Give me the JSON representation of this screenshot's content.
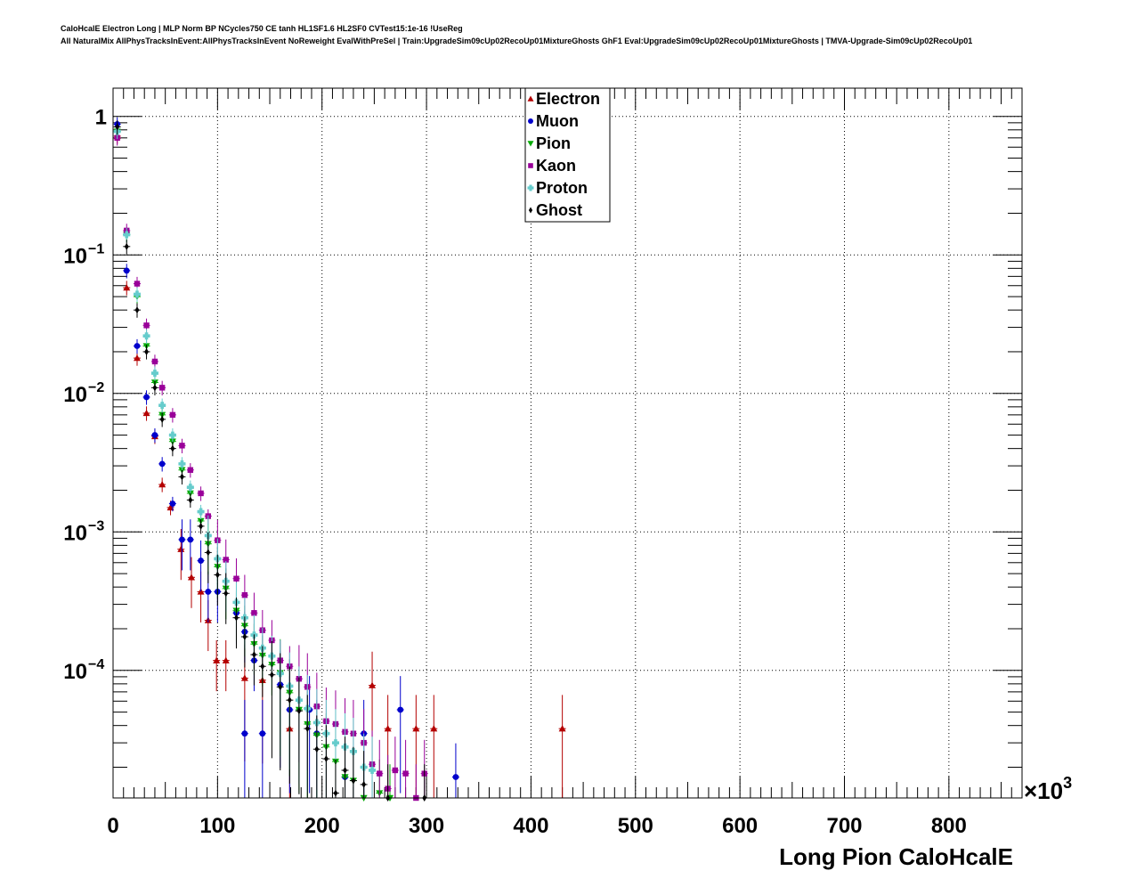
{
  "title": {
    "line1": "CaloHcalE Electron Long | MLP Norm BP NCycles750 CE tanh HL1SF1.6 HL2SF0 CVTest15:1e-16 !UseReg",
    "line2": "All NaturalMix AllPhysTracksInEvent:AllPhysTracksInEvent NoReweight EvalWithPreSel | Train:UpgradeSim09cUp02RecoUp01MixtureGhosts GhF1 Eval:UpgradeSim09cUp02RecoUp01MixtureGhosts | TMVA-Upgrade-Sim09cUp02RecoUp01"
  },
  "chart_data": {
    "type": "scatter",
    "xlabel": "Long Pion CaloHcalE",
    "x_multiplier_label": "×10",
    "x_multiplier_exponent": "3",
    "x_unit_note": "x values in units of 10^3",
    "xlim": [
      0,
      870
    ],
    "ylim": [
      1.2e-05,
      1.6
    ],
    "yscale": "log",
    "grid": true,
    "legend_position": "top-center",
    "x_ticks": [
      0,
      100,
      200,
      300,
      400,
      500,
      600,
      700,
      800
    ],
    "y_ticks": [
      {
        "value": 1,
        "mant": "1",
        "exp": ""
      },
      {
        "value": 0.1,
        "mant": "10",
        "exp": "−1"
      },
      {
        "value": 0.01,
        "mant": "10",
        "exp": "−2"
      },
      {
        "value": 0.001,
        "mant": "10",
        "exp": "−3"
      },
      {
        "value": 0.0001,
        "mant": "10",
        "exp": "−4"
      }
    ],
    "series": [
      {
        "name": "Electron",
        "color": "#b40000",
        "marker": "triangle-up",
        "points": [
          [
            4,
            0.72
          ],
          [
            13,
            0.058
          ],
          [
            23,
            0.018
          ],
          [
            32,
            0.0072
          ],
          [
            40,
            0.0049
          ],
          [
            47,
            0.0022
          ],
          [
            55,
            0.0015
          ],
          [
            65,
            0.00075
          ],
          [
            75,
            0.00047
          ],
          [
            84,
            0.00037
          ],
          [
            91,
            0.00023
          ],
          [
            99,
            0.000118
          ],
          [
            108,
            0.000118
          ],
          [
            126,
            8.8e-05
          ],
          [
            143,
            8.5e-05
          ],
          [
            169,
            3.8e-05
          ],
          [
            248,
            7.8e-05
          ],
          [
            263,
            3.8e-05
          ],
          [
            290,
            3.8e-05
          ],
          [
            307,
            3.8e-05
          ],
          [
            430,
            3.8e-05
          ]
        ]
      },
      {
        "name": "Muon",
        "color": "#0000cc",
        "marker": "circle",
        "points": [
          [
            4,
            0.88
          ],
          [
            13,
            0.077
          ],
          [
            23,
            0.022
          ],
          [
            32,
            0.0094
          ],
          [
            40,
            0.005
          ],
          [
            47,
            0.0031
          ],
          [
            57,
            0.0016
          ],
          [
            66,
            0.00088
          ],
          [
            74,
            0.00088
          ],
          [
            84,
            0.00062
          ],
          [
            91,
            0.00037
          ],
          [
            100,
            0.00037
          ],
          [
            118,
            0.00026
          ],
          [
            126,
            0.00019
          ],
          [
            126,
            3.5e-05
          ],
          [
            135,
            0.000118
          ],
          [
            143,
            3.5e-05
          ],
          [
            160,
            7.9e-05
          ],
          [
            169,
            5.2e-05
          ],
          [
            188,
            5.2e-05
          ],
          [
            195,
            3.5e-05
          ],
          [
            222,
            1.7e-05
          ],
          [
            240,
            3.5e-05
          ],
          [
            275,
            5.2e-05
          ],
          [
            328,
            1.7e-05
          ]
        ]
      },
      {
        "name": "Pion",
        "color": "#00aa00",
        "marker": "triangle-down",
        "points": [
          [
            4,
            0.78
          ],
          [
            13,
            0.14
          ],
          [
            23,
            0.05
          ],
          [
            32,
            0.022
          ],
          [
            40,
            0.012
          ],
          [
            47,
            0.007
          ],
          [
            57,
            0.0045
          ],
          [
            66,
            0.0028
          ],
          [
            74,
            0.0019
          ],
          [
            84,
            0.0012
          ],
          [
            91,
            0.00082
          ],
          [
            100,
            0.00056
          ],
          [
            108,
            0.00039
          ],
          [
            118,
            0.00027
          ],
          [
            126,
            0.00021
          ],
          [
            135,
            0.000155
          ],
          [
            143,
            0.000128
          ],
          [
            152,
            0.00011
          ],
          [
            160,
            9.6e-05
          ],
          [
            169,
            6.9e-05
          ],
          [
            178,
            5.2e-05
          ],
          [
            186,
            4.1e-05
          ],
          [
            195,
            3.4e-05
          ],
          [
            204,
            2.8e-05
          ],
          [
            213,
            2.2e-05
          ],
          [
            222,
            1.7e-05
          ],
          [
            230,
            1.6e-05
          ],
          [
            240,
            1.2e-05
          ],
          [
            255,
            1.3e-05
          ],
          [
            265,
            1.2e-05
          ]
        ]
      },
      {
        "name": "Kaon",
        "color": "#990099",
        "marker": "square",
        "points": [
          [
            4,
            0.7
          ],
          [
            13,
            0.15
          ],
          [
            23,
            0.062
          ],
          [
            32,
            0.031
          ],
          [
            40,
            0.017
          ],
          [
            47,
            0.011
          ],
          [
            57,
            0.007
          ],
          [
            66,
            0.0042
          ],
          [
            74,
            0.0028
          ],
          [
            84,
            0.0019
          ],
          [
            91,
            0.0013
          ],
          [
            100,
            0.00087
          ],
          [
            108,
            0.00063
          ],
          [
            118,
            0.00046
          ],
          [
            126,
            0.00035
          ],
          [
            135,
            0.00026
          ],
          [
            143,
            0.000195
          ],
          [
            152,
            0.000165
          ],
          [
            160,
            0.000118
          ],
          [
            169,
            0.000107
          ],
          [
            178,
            8.7e-05
          ],
          [
            186,
            7.6e-05
          ],
          [
            195,
            5.5e-05
          ],
          [
            204,
            4.3e-05
          ],
          [
            213,
            4.1e-05
          ],
          [
            222,
            3.6e-05
          ],
          [
            230,
            3.5e-05
          ],
          [
            240,
            3e-05
          ],
          [
            248,
            2.1e-05
          ],
          [
            255,
            1.8e-05
          ],
          [
            263,
            1.4e-05
          ],
          [
            270,
            1.9e-05
          ],
          [
            280,
            1.8e-05
          ],
          [
            290,
            1.2e-05
          ],
          [
            298,
            1.8e-05
          ]
        ]
      },
      {
        "name": "Proton",
        "color": "#66cccc",
        "marker": "cross",
        "points": [
          [
            4,
            0.78
          ],
          [
            13,
            0.14
          ],
          [
            23,
            0.052
          ],
          [
            32,
            0.026
          ],
          [
            40,
            0.014
          ],
          [
            47,
            0.0082
          ],
          [
            57,
            0.005
          ],
          [
            66,
            0.0031
          ],
          [
            74,
            0.0021
          ],
          [
            84,
            0.0014
          ],
          [
            91,
            0.00094
          ],
          [
            100,
            0.00064
          ],
          [
            108,
            0.00044
          ],
          [
            118,
            0.00031
          ],
          [
            126,
            0.00024
          ],
          [
            135,
            0.00018
          ],
          [
            143,
            0.000145
          ],
          [
            152,
            0.000127
          ],
          [
            160,
            9.5e-05
          ],
          [
            169,
            7.7e-05
          ],
          [
            178,
            6.1e-05
          ],
          [
            186,
            5.3e-05
          ],
          [
            195,
            4.2e-05
          ],
          [
            204,
            3.5e-05
          ],
          [
            213,
            3e-05
          ],
          [
            222,
            2.8e-05
          ],
          [
            230,
            2.6e-05
          ],
          [
            240,
            2e-05
          ],
          [
            248,
            1.9e-05
          ]
        ]
      },
      {
        "name": "Ghost",
        "color": "#000000",
        "marker": "diamond",
        "points": [
          [
            4,
            0.84
          ],
          [
            13,
            0.115
          ],
          [
            23,
            0.04
          ],
          [
            32,
            0.02
          ],
          [
            40,
            0.011
          ],
          [
            47,
            0.0065
          ],
          [
            57,
            0.004
          ],
          [
            66,
            0.0025
          ],
          [
            74,
            0.0017
          ],
          [
            84,
            0.0011
          ],
          [
            91,
            0.00071
          ],
          [
            100,
            0.00049
          ],
          [
            108,
            0.00036
          ],
          [
            118,
            0.00024
          ],
          [
            126,
            0.000175
          ],
          [
            135,
            0.00013
          ],
          [
            143,
            0.000107
          ],
          [
            152,
            9.3e-05
          ],
          [
            160,
            7.6e-05
          ],
          [
            169,
            6.1e-05
          ],
          [
            178,
            5.1e-05
          ],
          [
            186,
            3.8e-05
          ],
          [
            195,
            2.7e-05
          ],
          [
            204,
            2.3e-05
          ],
          [
            213,
            1.3e-05
          ],
          [
            222,
            1.9e-05
          ],
          [
            230,
            1.6e-05
          ],
          [
            240,
            1.5e-05
          ],
          [
            263,
            1.2e-05
          ],
          [
            298,
            1.2e-05
          ]
        ]
      }
    ]
  }
}
